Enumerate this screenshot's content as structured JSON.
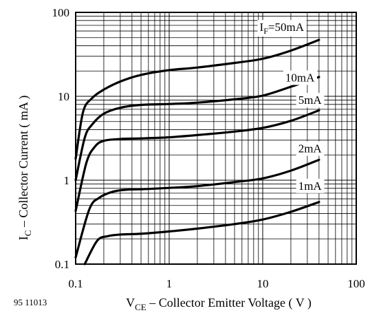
{
  "figure_number": "95 11013",
  "chart_data": {
    "type": "line",
    "xlabel": {
      "main": "V",
      "sub": "CE",
      "rest": " – Collector Emitter Voltage ( V )"
    },
    "ylabel": {
      "main": "I",
      "sub": "C",
      "rest": " – Collector Current ( mA )"
    },
    "x_scale": "log",
    "y_scale": "log",
    "xlim": [
      0.1,
      100
    ],
    "ylim": [
      0.1,
      100
    ],
    "x_ticks": [
      "0.1",
      "1",
      "10",
      "100"
    ],
    "y_ticks": [
      "0.1",
      "1",
      "10",
      "100"
    ],
    "grid": true,
    "series": [
      {
        "name": "I_F=50mA",
        "label": {
          "main": "I",
          "sub": "F",
          "rest": "=50mA"
        },
        "label_at": [
          16,
          60
        ],
        "points": [
          [
            0.1,
            1.8
          ],
          [
            0.12,
            6.5
          ],
          [
            0.15,
            9.5
          ],
          [
            0.2,
            12
          ],
          [
            0.3,
            15
          ],
          [
            0.5,
            18
          ],
          [
            1,
            20.5
          ],
          [
            2,
            22
          ],
          [
            5,
            25
          ],
          [
            10,
            28
          ],
          [
            20,
            35
          ],
          [
            40,
            47
          ]
        ]
      },
      {
        "name": "10mA",
        "label": {
          "main": "10mA",
          "sub": "",
          "rest": ""
        },
        "label_at": [
          25,
          15
        ],
        "points": [
          [
            0.1,
            1.0
          ],
          [
            0.125,
            3.2
          ],
          [
            0.15,
            4.6
          ],
          [
            0.2,
            6.2
          ],
          [
            0.3,
            7.3
          ],
          [
            0.5,
            7.9
          ],
          [
            1,
            8.1
          ],
          [
            2,
            8.4
          ],
          [
            5,
            9.2
          ],
          [
            10,
            10.2
          ],
          [
            20,
            13
          ],
          [
            40,
            17
          ]
        ]
      },
      {
        "name": "5mA",
        "label": {
          "main": "5mA",
          "sub": "",
          "rest": ""
        },
        "label_at": [
          32,
          8.1
        ],
        "points": [
          [
            0.1,
            0.43
          ],
          [
            0.13,
            1.6
          ],
          [
            0.16,
            2.5
          ],
          [
            0.2,
            2.95
          ],
          [
            0.3,
            3.1
          ],
          [
            0.5,
            3.15
          ],
          [
            1,
            3.25
          ],
          [
            2,
            3.45
          ],
          [
            5,
            3.8
          ],
          [
            10,
            4.2
          ],
          [
            20,
            5.1
          ],
          [
            40,
            6.8
          ]
        ]
      },
      {
        "name": "2mA",
        "label": {
          "main": "2mA",
          "sub": "",
          "rest": ""
        },
        "label_at": [
          32,
          2.15
        ],
        "points": [
          [
            0.1,
            0.12
          ],
          [
            0.14,
            0.45
          ],
          [
            0.18,
            0.62
          ],
          [
            0.25,
            0.73
          ],
          [
            0.35,
            0.77
          ],
          [
            0.5,
            0.78
          ],
          [
            1,
            0.81
          ],
          [
            2,
            0.85
          ],
          [
            5,
            0.95
          ],
          [
            10,
            1.05
          ],
          [
            20,
            1.3
          ],
          [
            40,
            1.75
          ]
        ]
      },
      {
        "name": "1mA",
        "label": {
          "main": "1mA",
          "sub": "",
          "rest": ""
        },
        "label_at": [
          32,
          0.77
        ],
        "points": [
          [
            0.125,
            0.1
          ],
          [
            0.17,
            0.19
          ],
          [
            0.22,
            0.215
          ],
          [
            0.3,
            0.225
          ],
          [
            0.5,
            0.23
          ],
          [
            1,
            0.245
          ],
          [
            2,
            0.265
          ],
          [
            5,
            0.3
          ],
          [
            10,
            0.34
          ],
          [
            20,
            0.42
          ],
          [
            40,
            0.55
          ]
        ]
      }
    ]
  }
}
